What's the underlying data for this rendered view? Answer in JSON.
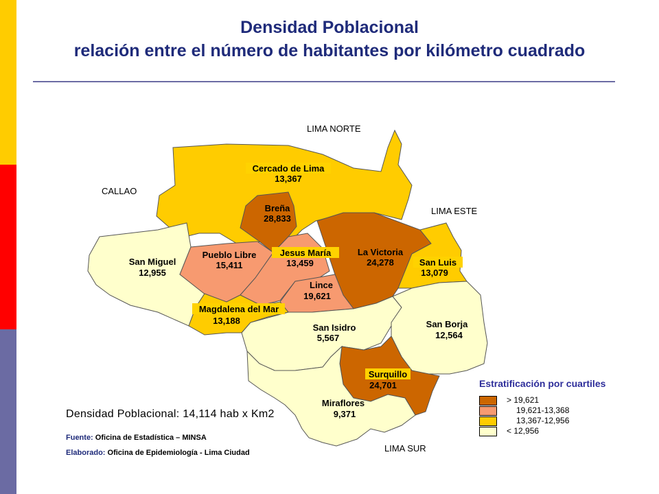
{
  "header": {
    "title_line1": "Densidad Poblacional",
    "title_line2": "relación entre el número de habitantes por kilómetro cuadrado"
  },
  "colors": {
    "gt_19621": "#cc6600",
    "range_19621_13368": "#f79a70",
    "range_13367_12956": "#ffcc00",
    "lt_12956": "#ffffcc",
    "title": "#1f2b7a",
    "side_top": "#ffcc00",
    "side_mid": "#ff0000",
    "side_bottom": "#6b6ba3"
  },
  "regions": {
    "north": "LIMA NORTE",
    "callao": "CALLAO",
    "east": "LIMA ESTE",
    "south": "LIMA SUR"
  },
  "districts": {
    "cercado": {
      "name": "Cercado de Lima",
      "density": "13,367"
    },
    "brena": {
      "name": "Breña",
      "density": "28,833"
    },
    "pueblo_libre": {
      "name": "Pueblo Libre",
      "density": "15,411"
    },
    "jesus_maria": {
      "name": "Jesus María",
      "density": "13,459"
    },
    "la_victoria": {
      "name": "La Victoria",
      "density": "24,278"
    },
    "san_luis": {
      "name": "San Luis",
      "density": "13,079"
    },
    "san_miguel": {
      "name": "San Miguel",
      "density": "12,955"
    },
    "lince": {
      "name": "Lince",
      "density": "19,621"
    },
    "magdalena": {
      "name": "Magdalena del Mar",
      "density": "13,188"
    },
    "san_isidro": {
      "name": "San Isidro",
      "density": "5,567"
    },
    "san_borja": {
      "name": "San Borja",
      "density": "12,564"
    },
    "surquillo": {
      "name": "Surquillo",
      "density": "24,701"
    },
    "miraflores": {
      "name": "Miraflores",
      "density": "9,371"
    }
  },
  "summary": {
    "density_text": "Densidad Poblacional: 14,114 hab x Km2"
  },
  "credits": {
    "source_key": "Fuente:",
    "source_value": " Oficina de Estadística – MINSA",
    "made_key": "Elaborado:",
    "made_value": " Oficina de Epidemiología - Lima Ciudad"
  },
  "legend": {
    "title": "Estratificación por cuartiles",
    "items": [
      "> 19,621",
      "19,621-13,368",
      "13,367-12,956",
      "< 12,956"
    ]
  }
}
